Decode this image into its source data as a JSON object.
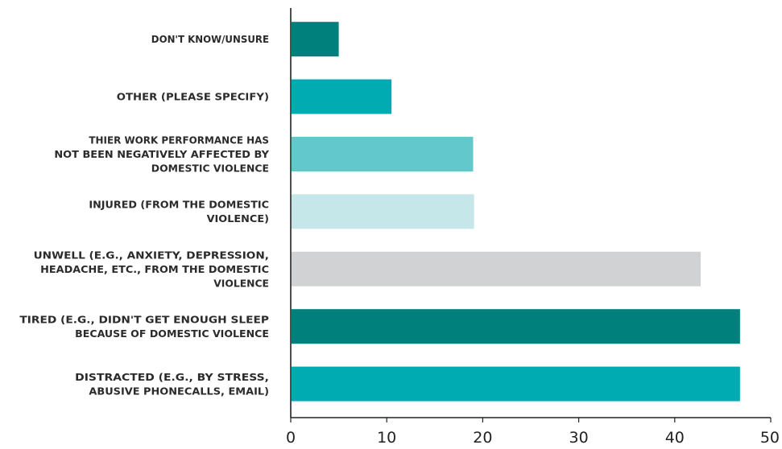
{
  "chart_data": {
    "type": "bar",
    "orientation": "horizontal",
    "title": "",
    "xlabel": "",
    "ylabel": "",
    "xlim": [
      0,
      50
    ],
    "x_ticks": [
      0,
      10,
      20,
      30,
      40,
      50
    ],
    "grid": false,
    "categories": [
      "DON'T KNOW/UNSURE",
      "OTHER (PLEASE SPECIFY)",
      "THIER WORK PERFORMANCE HAS NOT BEEN NEGATIVELY AFFECTED BY DOMESTIC VIOLENCE",
      "INJURED (FROM THE DOMESTIC VIOLENCE)",
      "UNWELL (E.G., ANXIETY, DEPRESSION, HEADACHE, ETC., FROM THE DOMESTIC VIOLENCE",
      "TIRED (E.G., DIDN'T GET ENOUGH SLEEP BECAUSE OF DOMESTIC VIOLENCE",
      "DISTRACTED (E.G., BY STRESS, ABUSIVE PHONECALLS, EMAIL)"
    ],
    "label_lines": [
      [
        "DON'T KNOW/UNSURE"
      ],
      [
        "OTHER (PLEASE SPECIFY)"
      ],
      [
        "THIER WORK PERFORMANCE HAS",
        "NOT BEEN NEGATIVELY AFFECTED BY",
        "DOMESTIC VIOLENCE"
      ],
      [
        "INJURED (FROM THE DOMESTIC",
        "VIOLENCE)"
      ],
      [
        "UNWELL (E.G., ANXIETY, DEPRESSION,",
        "HEADACHE, ETC., FROM THE DOMESTIC",
        "VIOLENCE"
      ],
      [
        "TIRED (E.G., DIDN'T GET ENOUGH SLEEP",
        "BECAUSE OF DOMESTIC VIOLENCE"
      ],
      [
        "DISTRACTED (E.G., BY STRESS,",
        "ABUSIVE PHONECALLS, EMAIL)"
      ]
    ],
    "values": [
      5,
      10.5,
      19,
      19.1,
      42.7,
      46.8,
      46.8
    ],
    "colors": [
      "#00807d",
      "#00acb1",
      "#63c8cc",
      "#c6e7ea",
      "#d1d2d3",
      "#00807d",
      "#00acb1"
    ]
  }
}
